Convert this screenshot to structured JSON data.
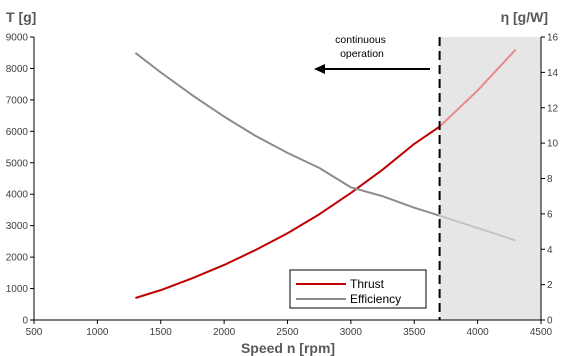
{
  "chart_data": {
    "type": "line",
    "xlabel": "Speed n [rpm]",
    "ylabel_left": "T [g]",
    "ylabel_right": "η [g/W]",
    "xlim": [
      500,
      4500
    ],
    "ylim_left": [
      0,
      9000
    ],
    "ylim_right": [
      0,
      16
    ],
    "x_ticks": [
      500,
      1000,
      1500,
      2000,
      2500,
      3000,
      3500,
      4000,
      4500
    ],
    "y_left_ticks": [
      0,
      1000,
      2000,
      3000,
      4000,
      5000,
      6000,
      7000,
      8000,
      9000
    ],
    "y_right_ticks": [
      0,
      2,
      4,
      6,
      8,
      10,
      12,
      14,
      16
    ],
    "grid": false,
    "legend_position": "bottom-right",
    "continuous_operation_limit_rpm": 3700,
    "annotation": "continuous\noperation",
    "series": [
      {
        "name": "Thrust",
        "axis": "left",
        "color": "#c00000",
        "color_beyond_limit": "#e8888f",
        "x": [
          1300,
          1500,
          1750,
          2000,
          2250,
          2500,
          2750,
          3000,
          3250,
          3500,
          3700,
          4000,
          4300
        ],
        "y": [
          700,
          950,
          1330,
          1750,
          2230,
          2760,
          3360,
          4040,
          4780,
          5600,
          6150,
          7300,
          8600
        ]
      },
      {
        "name": "Efficiency",
        "axis": "right",
        "color": "#8c8c8c",
        "color_beyond_limit": "#c4c4c4",
        "x": [
          1300,
          1500,
          1750,
          2000,
          2250,
          2500,
          2750,
          3000,
          3250,
          3500,
          3700,
          4000,
          4300
        ],
        "y": [
          15.1,
          14.0,
          12.7,
          11.5,
          10.4,
          9.45,
          8.6,
          7.5,
          7.0,
          6.35,
          5.9,
          5.2,
          4.5
        ]
      }
    ]
  }
}
